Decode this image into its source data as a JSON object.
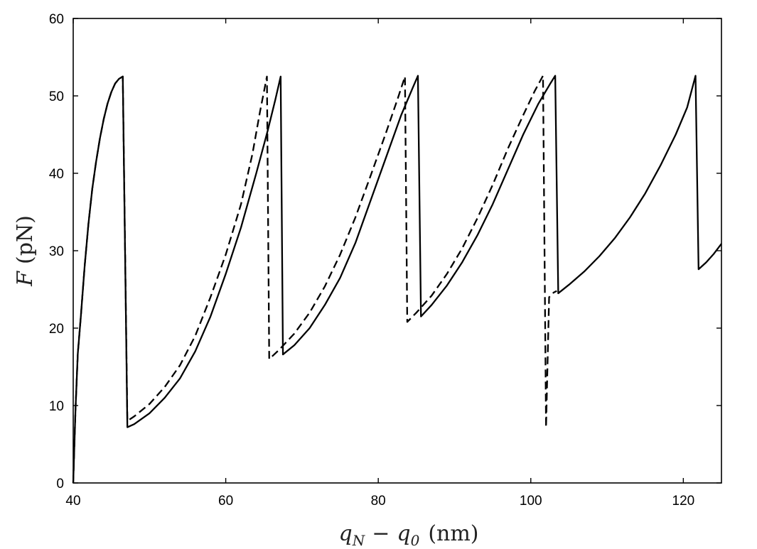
{
  "chart_data": {
    "type": "line",
    "title": "",
    "xlabel": {
      "lhs_var": "q",
      "lhs_sub": "N",
      "operator": "−",
      "rhs_var": "q",
      "rhs_sub": "0",
      "unit": "(nm)"
    },
    "ylabel": {
      "var": "F",
      "unit": "(pN)"
    },
    "xlim": [
      40,
      125
    ],
    "ylim": [
      0,
      60
    ],
    "x_ticks": [
      40,
      60,
      80,
      100,
      120
    ],
    "y_ticks": [
      0,
      10,
      20,
      30,
      40,
      50,
      60
    ],
    "x_tick_labels": [
      "40",
      "60",
      "80",
      "100",
      "120"
    ],
    "y_tick_labels": [
      "0",
      "10",
      "20",
      "30",
      "40",
      "50",
      "60"
    ],
    "grid": false,
    "legend": "none",
    "series": [
      {
        "style": "solid",
        "color": "#000000",
        "points": [
          [
            40.0,
            0.0
          ],
          [
            40.3,
            9.5
          ],
          [
            40.6,
            16.7
          ],
          [
            41.0,
            21.5
          ],
          [
            41.5,
            28.0
          ],
          [
            42.0,
            33.5
          ],
          [
            42.5,
            38.0
          ],
          [
            43.0,
            41.5
          ],
          [
            43.5,
            44.5
          ],
          [
            44.0,
            47.0
          ],
          [
            44.5,
            49.0
          ],
          [
            45.0,
            50.5
          ],
          [
            45.5,
            51.6
          ],
          [
            46.0,
            52.2
          ],
          [
            46.5,
            52.5
          ],
          [
            47.1,
            7.2
          ],
          [
            48.0,
            7.6
          ],
          [
            50.0,
            9.0
          ],
          [
            52.0,
            11.0
          ],
          [
            54.0,
            13.5
          ],
          [
            56.0,
            17.0
          ],
          [
            58.0,
            21.5
          ],
          [
            60.0,
            27.0
          ],
          [
            62.0,
            33.0
          ],
          [
            64.0,
            40.0
          ],
          [
            65.5,
            45.5
          ],
          [
            66.5,
            49.5
          ],
          [
            67.2,
            52.5
          ],
          [
            67.5,
            16.6
          ],
          [
            69.0,
            17.8
          ],
          [
            71.0,
            20.0
          ],
          [
            73.0,
            23.0
          ],
          [
            75.0,
            26.5
          ],
          [
            77.0,
            31.0
          ],
          [
            79.0,
            36.5
          ],
          [
            81.0,
            42.0
          ],
          [
            83.0,
            47.5
          ],
          [
            84.5,
            51.0
          ],
          [
            85.2,
            52.6
          ],
          [
            85.6,
            21.5
          ],
          [
            87.0,
            23.0
          ],
          [
            89.0,
            25.5
          ],
          [
            91.0,
            28.5
          ],
          [
            93.0,
            32.0
          ],
          [
            95.0,
            36.0
          ],
          [
            97.0,
            40.5
          ],
          [
            99.0,
            45.0
          ],
          [
            101.0,
            49.0
          ],
          [
            102.5,
            51.5
          ],
          [
            103.2,
            52.6
          ],
          [
            103.6,
            24.5
          ],
          [
            105.0,
            25.6
          ],
          [
            107.0,
            27.3
          ],
          [
            109.0,
            29.3
          ],
          [
            111.0,
            31.6
          ],
          [
            113.0,
            34.3
          ],
          [
            115.0,
            37.4
          ],
          [
            117.0,
            41.0
          ],
          [
            119.0,
            45.0
          ],
          [
            120.5,
            48.5
          ],
          [
            121.6,
            52.6
          ],
          [
            122.0,
            27.6
          ],
          [
            123.0,
            28.5
          ],
          [
            124.0,
            29.6
          ],
          [
            125.0,
            30.9
          ]
        ]
      },
      {
        "style": "dashed",
        "color": "#000000",
        "points": [
          [
            40.0,
            0.0
          ],
          [
            40.3,
            9.5
          ],
          [
            40.6,
            16.7
          ],
          [
            41.0,
            21.5
          ],
          [
            41.5,
            28.0
          ],
          [
            42.0,
            33.5
          ],
          [
            42.5,
            38.0
          ],
          [
            43.0,
            41.5
          ],
          [
            43.5,
            44.5
          ],
          [
            44.0,
            47.0
          ],
          [
            44.5,
            49.0
          ],
          [
            45.0,
            50.5
          ],
          [
            45.5,
            51.6
          ],
          [
            46.0,
            52.2
          ],
          [
            46.5,
            52.5
          ],
          [
            47.1,
            8.0
          ],
          [
            48.0,
            8.6
          ],
          [
            50.0,
            10.2
          ],
          [
            52.0,
            12.4
          ],
          [
            54.0,
            15.2
          ],
          [
            56.0,
            19.0
          ],
          [
            58.0,
            24.0
          ],
          [
            60.0,
            29.5
          ],
          [
            62.0,
            36.0
          ],
          [
            63.5,
            42.5
          ],
          [
            64.5,
            48.0
          ],
          [
            65.4,
            52.5
          ],
          [
            65.7,
            16.0
          ],
          [
            67.0,
            17.2
          ],
          [
            69.0,
            19.3
          ],
          [
            71.0,
            22.0
          ],
          [
            73.0,
            25.4
          ],
          [
            75.0,
            29.5
          ],
          [
            77.0,
            34.3
          ],
          [
            79.0,
            39.7
          ],
          [
            81.0,
            45.2
          ],
          [
            82.5,
            49.5
          ],
          [
            83.5,
            52.5
          ],
          [
            83.8,
            20.8
          ],
          [
            85.0,
            22.0
          ],
          [
            87.0,
            24.2
          ],
          [
            89.0,
            27.0
          ],
          [
            91.0,
            30.3
          ],
          [
            93.0,
            34.2
          ],
          [
            95.0,
            38.5
          ],
          [
            97.0,
            43.2
          ],
          [
            99.0,
            47.5
          ],
          [
            100.5,
            50.6
          ],
          [
            101.6,
            52.6
          ],
          [
            102.0,
            7.2
          ],
          [
            102.4,
            24.0
          ],
          [
            103.0,
            24.6
          ],
          [
            103.4,
            24.8
          ]
        ]
      }
    ]
  }
}
